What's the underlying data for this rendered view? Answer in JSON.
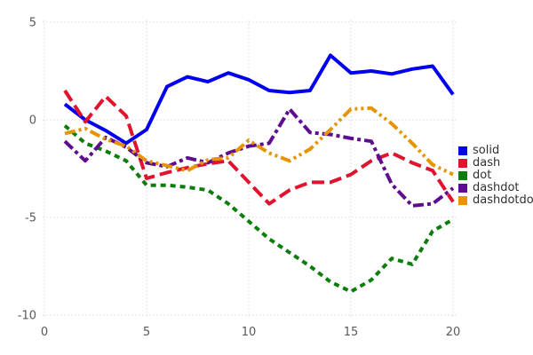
{
  "chart_data": {
    "type": "line",
    "title": "",
    "xlabel": "",
    "ylabel": "",
    "xlim": [
      0,
      20
    ],
    "ylim": [
      -10,
      5
    ],
    "xticks": [
      0,
      5,
      10,
      15,
      20
    ],
    "yticks": [
      5,
      0,
      -5,
      -10
    ],
    "grid": true,
    "legend_position": "right",
    "x": [
      1,
      2,
      3,
      4,
      5,
      6,
      7,
      8,
      9,
      10,
      11,
      12,
      13,
      14,
      15,
      16,
      17,
      18,
      19,
      20
    ],
    "series": [
      {
        "name": "solid",
        "color": "#0000ee",
        "dasharray": "",
        "values": [
          0.8,
          0.0,
          -0.55,
          -1.2,
          -0.5,
          1.7,
          2.2,
          1.95,
          2.4,
          2.05,
          1.5,
          1.4,
          1.5,
          3.3,
          2.4,
          2.5,
          2.35,
          2.6,
          2.75,
          1.3
        ]
      },
      {
        "name": "dash",
        "color": "#e0142d",
        "dasharray": "14 6",
        "values": [
          1.5,
          -0.1,
          1.2,
          0.2,
          -3.0,
          -2.7,
          -2.45,
          -2.25,
          -2.1,
          -3.2,
          -4.3,
          -3.6,
          -3.2,
          -3.2,
          -2.8,
          -2.1,
          -1.7,
          -2.2,
          -2.6,
          -4.2
        ]
      },
      {
        "name": "dot",
        "color": "#0a7d0a",
        "dasharray": "6 5",
        "values": [
          -0.3,
          -1.2,
          -1.6,
          -2.1,
          -3.35,
          -3.35,
          -3.45,
          -3.6,
          -4.3,
          -5.2,
          -6.1,
          -6.8,
          -7.5,
          -8.3,
          -8.8,
          -8.2,
          -7.1,
          -7.4,
          -5.7,
          -5.1
        ]
      },
      {
        "name": "dashdot",
        "color": "#5e0d8f",
        "dasharray": "12 4 4 4",
        "values": [
          -1.1,
          -2.1,
          -0.9,
          -1.4,
          -2.2,
          -2.4,
          -1.95,
          -2.2,
          -1.7,
          -1.35,
          -1.2,
          0.55,
          -0.65,
          -0.75,
          -0.95,
          -1.1,
          -3.3,
          -4.4,
          -4.3,
          -3.5
        ]
      },
      {
        "name": "dashdotdot",
        "color": "#e69500",
        "dasharray": "12 4 3 4 3 4",
        "values": [
          -0.7,
          -0.45,
          -1.0,
          -1.35,
          -2.1,
          -2.35,
          -2.6,
          -2.05,
          -1.95,
          -1.05,
          -1.7,
          -2.1,
          -1.5,
          -0.5,
          0.55,
          0.6,
          -0.2,
          -1.2,
          -2.3,
          -2.8
        ]
      }
    ],
    "style": {
      "background": "#ffffff",
      "grid_color": "#d8d8e2",
      "tick_label_color": "#58585f",
      "legend_label_color": "#303030",
      "line_width": 4
    }
  }
}
